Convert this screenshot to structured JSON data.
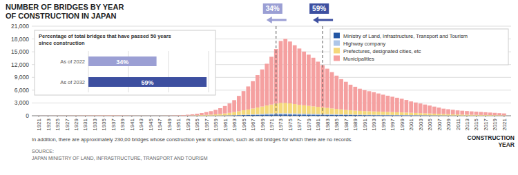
{
  "chart_data": [
    {
      "type": "bar",
      "title": "NUMBER OF BRIDGES BY YEAR\nOF CONSTRUCTION IN JAPAN",
      "x_label": "CONSTRUCTION\nYEAR",
      "footnote": "In addition, there are approximately 230,00 bridges whose construction year is unknown, such as old bridges for which there are no records.",
      "source": "SOURCE:\nJAPAN MINISTRY OF LAND, INFRASTRUCTURE, TRANSPORT AND TOURISM",
      "stacked": true,
      "grid": true,
      "legend": "upper right",
      "x": [
        1921,
        1922,
        1923,
        1924,
        1925,
        1926,
        1927,
        1928,
        1929,
        1930,
        1931,
        1932,
        1933,
        1934,
        1935,
        1936,
        1937,
        1938,
        1939,
        1940,
        1941,
        1942,
        1943,
        1944,
        1945,
        1946,
        1947,
        1948,
        1949,
        1950,
        1951,
        1952,
        1953,
        1954,
        1955,
        1956,
        1957,
        1958,
        1959,
        1960,
        1961,
        1962,
        1963,
        1964,
        1965,
        1966,
        1967,
        1968,
        1969,
        1970,
        1971,
        1972,
        1973,
        1974,
        1975,
        1976,
        1977,
        1978,
        1979,
        1980,
        1981,
        1982,
        1983,
        1984,
        1985,
        1986,
        1987,
        1988,
        1989,
        1990,
        1991,
        1992,
        1993,
        1994,
        1995,
        1996,
        1997,
        1998,
        1999,
        2000,
        2001,
        2002,
        2003,
        2004,
        2005,
        2006,
        2007,
        2008,
        2009,
        2010,
        2011,
        2012,
        2013,
        2014,
        2015,
        2016,
        2017,
        2018,
        2019,
        2020,
        2021
      ],
      "xlim": [
        1919.5,
        2022.5
      ],
      "xticks": [
        1921,
        1923,
        1925,
        1927,
        1929,
        1931,
        1933,
        1935,
        1937,
        1939,
        1941,
        1943,
        1945,
        1947,
        1949,
        1951,
        1953,
        1955,
        1957,
        1959,
        1961,
        1963,
        1965,
        1967,
        1969,
        1971,
        1973,
        1975,
        1977,
        1979,
        1981,
        1983,
        1985,
        1987,
        1989,
        1991,
        1993,
        1995,
        1997,
        1999,
        2001,
        2003,
        2005,
        2007,
        2009,
        2011,
        2013,
        2015,
        2017,
        2019,
        2021
      ],
      "ylim": [
        0,
        21000
      ],
      "yticks": [
        0,
        {
          "value": 3000,
          "label": "3,000"
        },
        {
          "value": 6000,
          "label": "6,000"
        },
        {
          "value": 9000,
          "label": "9,000"
        },
        {
          "value": 12000,
          "label": "12,000"
        },
        {
          "value": 15000,
          "label": "15,000"
        },
        {
          "value": 18000,
          "label": "18,000"
        },
        {
          "value": 21000,
          "label": "21,000"
        }
      ],
      "series": [
        {
          "name": "Ministry of Land, Infrastructure, Transport and Tourism",
          "color": "#2457a4",
          "values": [
            5,
            5,
            5,
            5,
            5,
            5,
            5,
            5,
            5,
            5,
            5,
            5,
            5,
            5,
            5,
            5,
            5,
            5,
            5,
            5,
            5,
            5,
            5,
            5,
            5,
            5,
            5,
            5,
            5,
            5,
            5,
            5,
            5,
            10,
            15,
            20,
            25,
            30,
            35,
            45,
            55,
            70,
            90,
            120,
            150,
            170,
            190,
            210,
            240,
            260,
            270,
            290,
            300,
            300,
            290,
            280,
            270,
            260,
            250,
            240,
            230,
            220,
            210,
            200,
            190,
            180,
            170,
            165,
            155,
            145,
            135,
            130,
            125,
            120,
            115,
            110,
            105,
            100,
            95,
            90,
            85,
            80,
            75,
            70,
            65,
            60,
            55,
            50,
            45,
            40,
            35,
            30,
            28,
            25,
            22,
            20,
            18,
            15,
            12,
            10,
            8
          ]
        },
        {
          "name": "Highway company",
          "color": "#aec6e8",
          "values": [
            0,
            0,
            0,
            0,
            0,
            0,
            0,
            0,
            0,
            0,
            0,
            0,
            0,
            0,
            0,
            0,
            0,
            0,
            0,
            0,
            0,
            0,
            0,
            0,
            0,
            0,
            0,
            0,
            0,
            0,
            0,
            0,
            0,
            0,
            5,
            8,
            10,
            12,
            15,
            18,
            25,
            35,
            50,
            65,
            85,
            105,
            130,
            165,
            200,
            240,
            260,
            270,
            280,
            275,
            265,
            255,
            245,
            235,
            225,
            215,
            205,
            195,
            185,
            175,
            165,
            155,
            145,
            135,
            125,
            120,
            115,
            110,
            105,
            100,
            95,
            90,
            85,
            80,
            75,
            70,
            65,
            60,
            55,
            50,
            45,
            40,
            35,
            30,
            25,
            22,
            18,
            15,
            12,
            10,
            8,
            7,
            6,
            5,
            4,
            3,
            2
          ]
        },
        {
          "name": "Prefectures, designated cities, etc",
          "color": "#f5d87a",
          "values": [
            5,
            5,
            5,
            8,
            10,
            12,
            15,
            18,
            20,
            22,
            25,
            28,
            30,
            32,
            35,
            38,
            35,
            30,
            25,
            22,
            18,
            15,
            12,
            10,
            8,
            8,
            10,
            12,
            15,
            18,
            25,
            35,
            50,
            70,
            100,
            130,
            170,
            220,
            280,
            360,
            460,
            580,
            720,
            870,
            1050,
            1200,
            1380,
            1550,
            1720,
            1900,
            2100,
            2300,
            2450,
            2450,
            2350,
            2200,
            2050,
            1950,
            1850,
            1750,
            1650,
            1550,
            1450,
            1350,
            1250,
            1150,
            1050,
            980,
            920,
            880,
            850,
            820,
            790,
            760,
            730,
            700,
            670,
            645,
            620,
            590,
            555,
            520,
            490,
            460,
            430,
            400,
            370,
            340,
            310,
            285,
            255,
            235,
            215,
            195,
            178,
            162,
            148,
            133,
            118,
            103,
            88
          ]
        },
        {
          "name": "Municipalities",
          "color": "#f5a0a0",
          "values": [
            15,
            18,
            20,
            22,
            25,
            28,
            32,
            38,
            42,
            48,
            52,
            58,
            62,
            68,
            72,
            78,
            75,
            68,
            58,
            48,
            38,
            28,
            22,
            18,
            14,
            16,
            20,
            28,
            42,
            60,
            88,
            125,
            185,
            260,
            360,
            490,
            650,
            820,
            1050,
            1350,
            1750,
            2200,
            2800,
            3600,
            4500,
            5400,
            6400,
            7600,
            8700,
            9800,
            11200,
            12800,
            14500,
            15000,
            14500,
            13800,
            13200,
            12600,
            12000,
            11400,
            10600,
            9900,
            9200,
            8500,
            7800,
            7100,
            6600,
            6000,
            5600,
            5200,
            4900,
            4700,
            4500,
            4250,
            4000,
            3800,
            3600,
            3400,
            3200,
            2950,
            2650,
            2450,
            2250,
            2050,
            1850,
            1650,
            1450,
            1250,
            1150,
            1050,
            950,
            900,
            850,
            800,
            750,
            700,
            650,
            600,
            550,
            500,
            450
          ]
        }
      ],
      "annotations": [
        {
          "x": 1972,
          "text": "34%",
          "color": "#9b9fd4"
        },
        {
          "x": 1982,
          "text": "59%",
          "color": "#3d4fa0"
        }
      ]
    },
    {
      "type": "bar",
      "orientation": "horizontal",
      "title": "Percentage of total bridges that have passed 50 years\nsince construction",
      "categories": [
        "As of 2022",
        "As of 2032"
      ],
      "values": [
        34,
        59
      ],
      "value_labels": [
        "34%",
        "59%"
      ],
      "data_labels": true,
      "colors": [
        "#9b9fd4",
        "#3d4fa0"
      ],
      "xlim": [
        0,
        60
      ],
      "xticks": [
        0,
        20,
        40,
        60
      ],
      "grid": true,
      "tick_labels": false
    }
  ]
}
